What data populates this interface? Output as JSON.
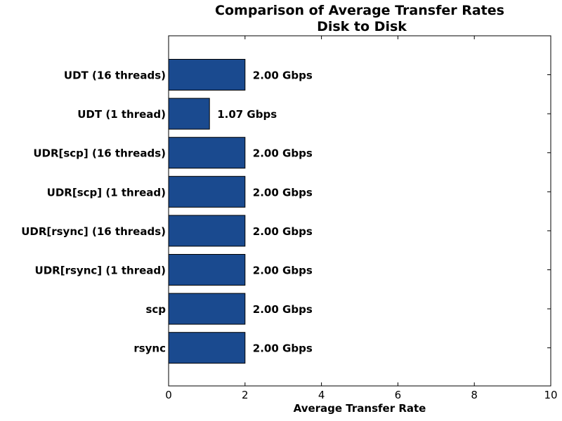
{
  "chart_data": {
    "type": "bar",
    "orientation": "horizontal",
    "title": "Comparison of Average Transfer Rates",
    "subtitle": "Disk to Disk",
    "xlabel": "Average Transfer Rate",
    "ylabel": "",
    "xlim": [
      0,
      10
    ],
    "x_ticks": [
      "0",
      "2",
      "4",
      "6",
      "8",
      "10"
    ],
    "grid": false,
    "bar_color": "#1a4a8f",
    "categories": [
      "UDT (16 threads)",
      "UDT (1 thread)",
      "UDR[scp] (16 threads)",
      "UDR[scp] (1 thread)",
      "UDR[rsync] (16 threads)",
      "UDR[rsync] (1 thread)",
      "scp",
      "rsync"
    ],
    "values": [
      2.0,
      1.07,
      2.0,
      2.0,
      2.0,
      2.0,
      2.0,
      2.0
    ],
    "value_labels": [
      "2.00 Gbps",
      "1.07 Gbps",
      "2.00 Gbps",
      "2.00 Gbps",
      "2.00 Gbps",
      "2.00 Gbps",
      "2.00 Gbps",
      "2.00 Gbps"
    ]
  }
}
